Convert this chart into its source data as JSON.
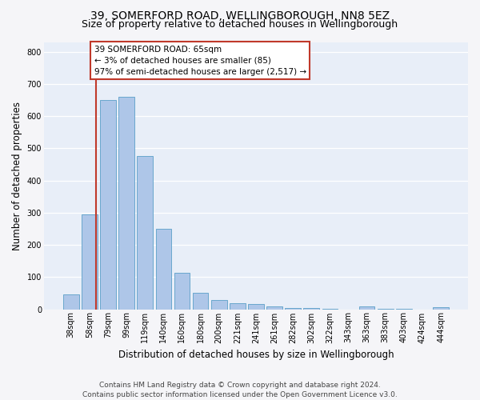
{
  "title1": "39, SOMERFORD ROAD, WELLINGBOROUGH, NN8 5EZ",
  "title2": "Size of property relative to detached houses in Wellingborough",
  "xlabel": "Distribution of detached houses by size in Wellingborough",
  "ylabel": "Number of detached properties",
  "bar_labels": [
    "38sqm",
    "58sqm",
    "79sqm",
    "99sqm",
    "119sqm",
    "140sqm",
    "160sqm",
    "180sqm",
    "200sqm",
    "221sqm",
    "241sqm",
    "261sqm",
    "282sqm",
    "302sqm",
    "322sqm",
    "343sqm",
    "363sqm",
    "383sqm",
    "403sqm",
    "424sqm",
    "444sqm"
  ],
  "bar_values": [
    47,
    295,
    650,
    660,
    475,
    250,
    113,
    50,
    28,
    18,
    17,
    8,
    3,
    5,
    2,
    0,
    8,
    2,
    1,
    0,
    7
  ],
  "bar_color": "#aec6e8",
  "bar_edge_color": "#5a9fc8",
  "vline_color": "#c0392b",
  "vline_x": 1.35,
  "annotation_text": "39 SOMERFORD ROAD: 65sqm\n← 3% of detached houses are smaller (85)\n97% of semi-detached houses are larger (2,517) →",
  "annotation_box_color": "#ffffff",
  "annotation_box_edge": "#c0392b",
  "ylim": [
    0,
    830
  ],
  "yticks": [
    0,
    100,
    200,
    300,
    400,
    500,
    600,
    700,
    800
  ],
  "footer": "Contains HM Land Registry data © Crown copyright and database right 2024.\nContains public sector information licensed under the Open Government Licence v3.0.",
  "bg_color": "#e8eef8",
  "grid_color": "#ffffff",
  "fig_bg_color": "#f5f5f8",
  "title1_fontsize": 10,
  "title2_fontsize": 9,
  "xlabel_fontsize": 8.5,
  "ylabel_fontsize": 8.5,
  "tick_fontsize": 7,
  "footer_fontsize": 6.5,
  "ann_fontsize": 7.5
}
